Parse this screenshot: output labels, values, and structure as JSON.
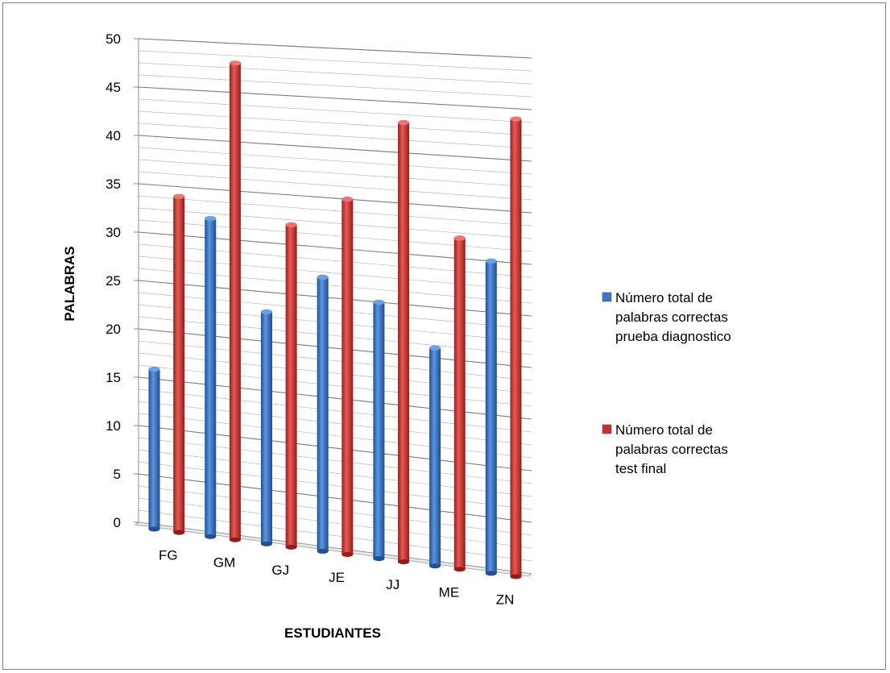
{
  "chart_data": {
    "type": "bar",
    "title": "",
    "xlabel": "ESTUDIANTES",
    "ylabel": "PALABRAS",
    "categories": [
      "FG",
      "GM",
      "GJ",
      "JE",
      "JJ",
      "ME",
      "ZN"
    ],
    "series": [
      {
        "name": "Número total de palabras correctas prueba diagnostico",
        "lines": [
          "Número total de",
          "palabras correctas",
          "prueba diagnostico"
        ],
        "values": [
          16,
          32,
          23,
          27,
          25,
          21,
          30
        ],
        "color": "#3c76c6"
      },
      {
        "name": "Número total de palabras correctas test final",
        "lines": [
          "Número total de",
          "palabras correctas",
          "test final"
        ],
        "values": [
          34,
          48,
          32,
          35,
          43,
          32,
          44
        ],
        "color": "#c8322e"
      }
    ],
    "ylim": [
      0,
      50
    ],
    "yticks": [
      0,
      5,
      10,
      15,
      20,
      25,
      30,
      35,
      40,
      45,
      50
    ],
    "grid": true,
    "legend": "right"
  }
}
